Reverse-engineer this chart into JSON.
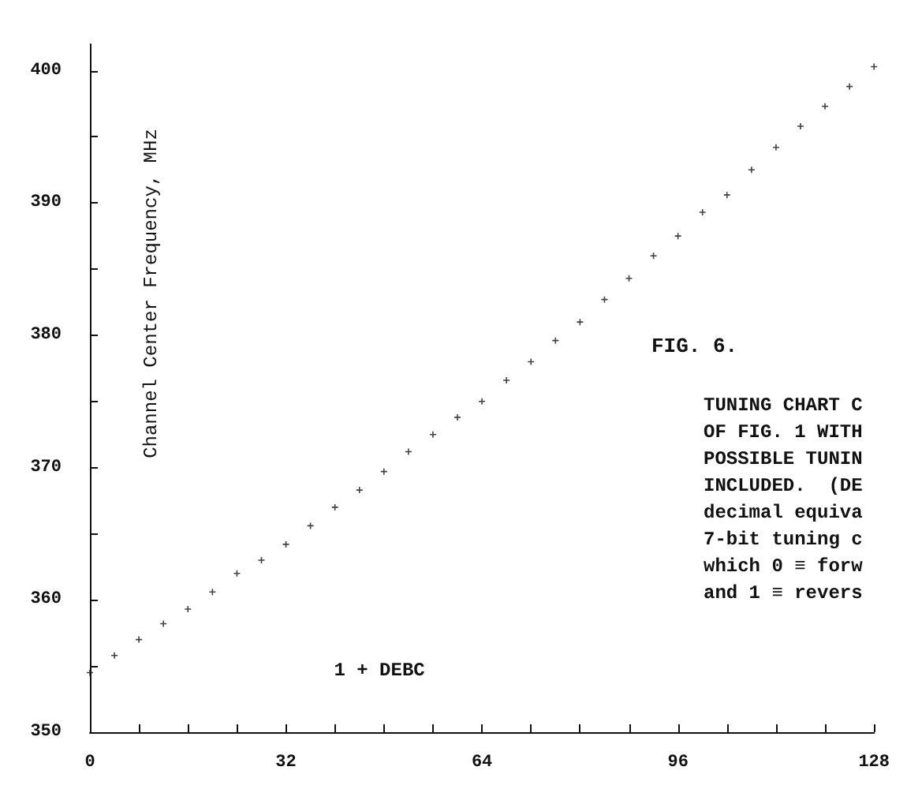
{
  "chart_data": {
    "type": "scatter",
    "title": "FIG. 6.",
    "xlabel": "1 + DEBC",
    "ylabel": "Channel Center Frequency, MHz",
    "annotations": [
      "TUNING CHART C",
      "OF FIG. 1 WITH",
      "POSSIBLE TUNIN",
      "INCLUDED.  (DE",
      "decimal equiva",
      "7-bit tuning c",
      "which 0 ≡ forw",
      "and 1 ≡ revers"
    ],
    "x": [
      0,
      4,
      8,
      12,
      16,
      20,
      24,
      28,
      32,
      36,
      40,
      44,
      48,
      52,
      56,
      60,
      64,
      68,
      72,
      76,
      80,
      84,
      88,
      92,
      96,
      100,
      104,
      108,
      112,
      116,
      120,
      124,
      128
    ],
    "values": [
      354.5,
      355.8,
      357,
      358.2,
      359.3,
      360.6,
      362,
      363,
      364.2,
      365.6,
      367,
      368.3,
      369.7,
      371.2,
      372.5,
      373.8,
      375,
      376.6,
      378,
      379.6,
      381,
      382.7,
      384.3,
      386,
      387.5,
      389.3,
      390.6,
      392.5,
      394.2,
      395.8,
      397.3,
      398.8,
      400.3
    ],
    "color": "#111111",
    "marker": "cross",
    "grid": false,
    "xlim": [
      0,
      128
    ],
    "xticks": [
      0,
      {
        "value": 8,
        "label": null
      },
      {
        "value": 16,
        "label": null
      },
      {
        "value": 24,
        "label": null
      },
      32,
      {
        "value": 40,
        "label": null
      },
      {
        "value": 48,
        "label": null
      },
      {
        "value": 56,
        "label": null
      },
      64,
      {
        "value": 72,
        "label": null
      },
      {
        "value": 80,
        "label": null
      },
      {
        "value": 88,
        "label": null
      },
      96,
      {
        "value": 104,
        "label": null
      },
      {
        "value": 112,
        "label": null
      },
      {
        "value": 120,
        "label": null
      },
      128
    ],
    "ylim": [
      350,
      402
    ],
    "yticks": [
      350,
      {
        "value": 355,
        "label": null
      },
      360,
      {
        "value": 365,
        "label": null
      },
      370,
      {
        "value": 375,
        "label": null
      },
      380,
      {
        "value": 385,
        "label": null
      },
      390,
      {
        "value": 395,
        "label": null
      },
      400
    ]
  }
}
